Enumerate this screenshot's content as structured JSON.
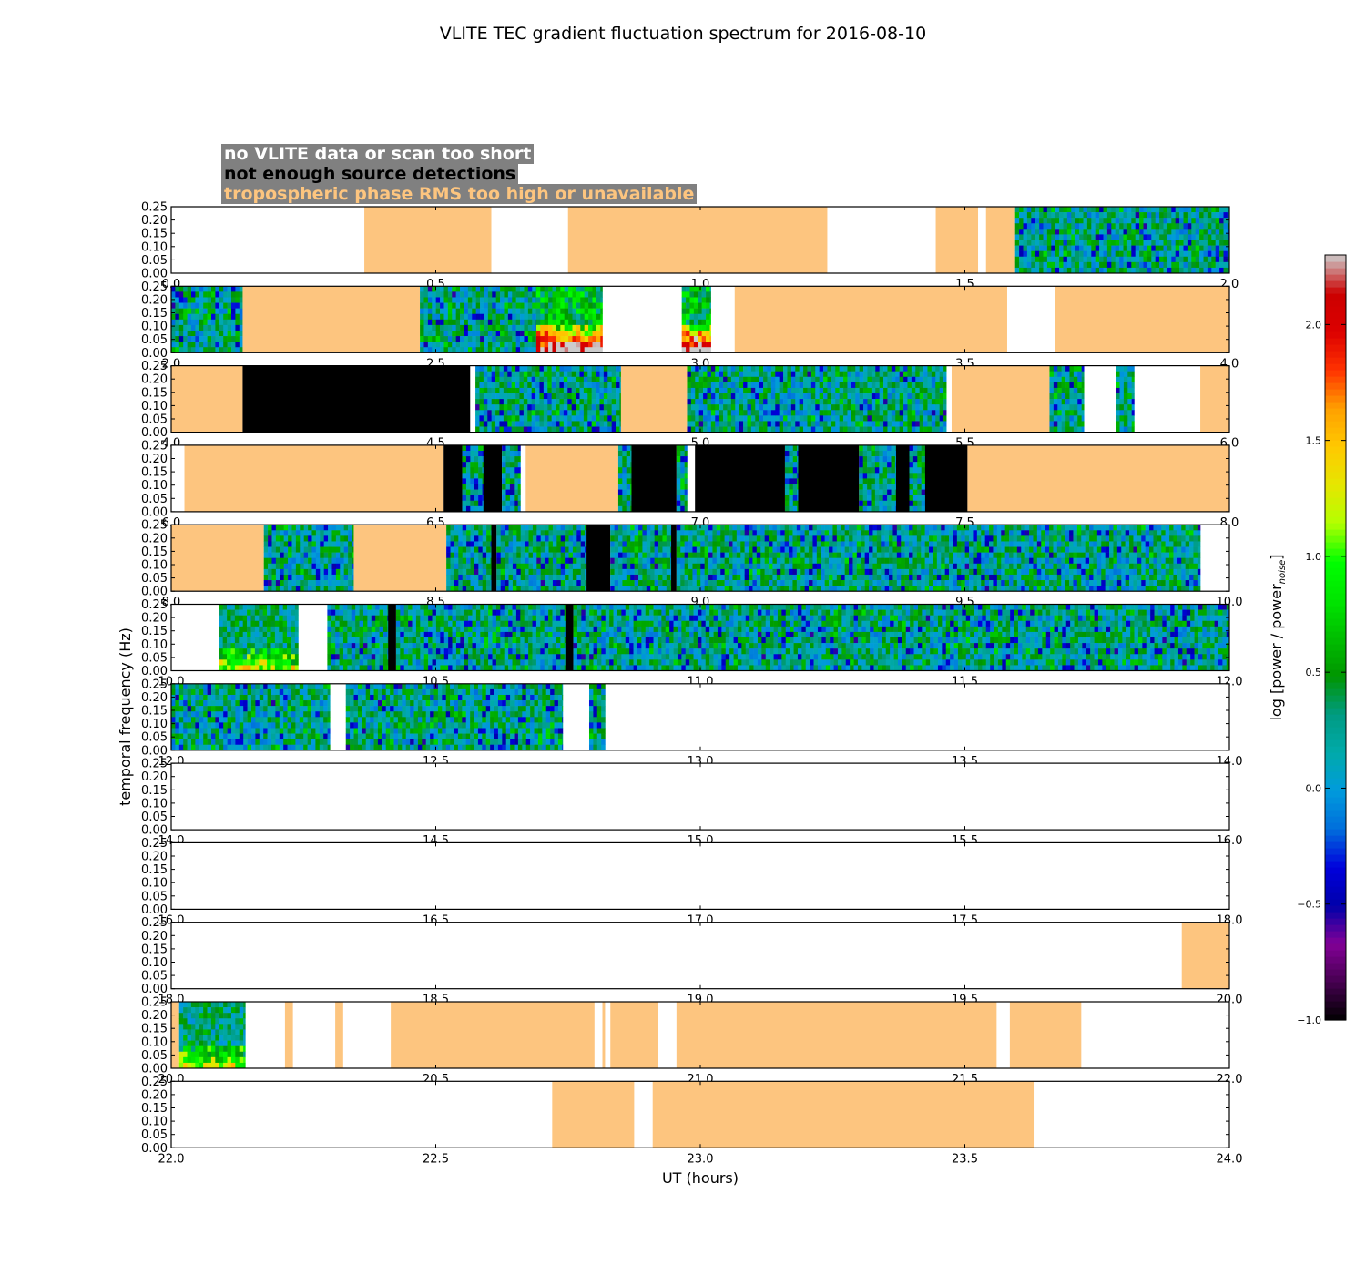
{
  "chart_data": {
    "type": "heatmap",
    "title": "VLITE TEC gradient fluctuation spectrum for 2016-08-10",
    "xlabel": "UT (hours)",
    "ylabel": "temporal frequency (Hz)",
    "ylim": [
      0,
      0.25
    ],
    "yticks": [
      "0.00",
      "0.05",
      "0.10",
      "0.15",
      "0.20",
      "0.25"
    ],
    "colorbar": {
      "label_text": "log [power / power",
      "label_subscript": "noise",
      "label_close": "]",
      "range": [
        -1.0,
        2.3
      ],
      "ticks": [
        "-1.0",
        "-0.5",
        "0.0",
        "0.5",
        "1.0",
        "1.5",
        "2.0"
      ],
      "colormap": "nipy_spectral"
    },
    "legend": [
      {
        "label": "no VLITE data or scan too short",
        "color": "#ffffff"
      },
      {
        "label": "not enough source detections",
        "color": "#000000"
      },
      {
        "label": "tropospheric phase RMS too high or unavailable",
        "color": "#fdc57f"
      }
    ],
    "colors": {
      "no_data": "#ffffff",
      "no_detections": "#000000",
      "tropo_flag": "#fdc57f",
      "legend_bg": "#808080"
    },
    "panels": [
      {
        "xlim": [
          0,
          2
        ],
        "xticks": [
          "0.0",
          "0.5",
          "1.0",
          "1.5",
          "2.0"
        ],
        "segments": [
          [
            0.365,
            0.605,
            "tropo"
          ],
          [
            0.75,
            1.24,
            "tropo"
          ],
          [
            1.445,
            1.525,
            "tropo"
          ],
          [
            1.54,
            1.595,
            "tropo"
          ],
          [
            1.595,
            2.0,
            "spectrum"
          ]
        ]
      },
      {
        "xlim": [
          2,
          4
        ],
        "xticks": [
          "2.0",
          "2.5",
          "3.0",
          "3.5",
          "4.0"
        ],
        "segments": [
          [
            2.0,
            2.135,
            "spectrum"
          ],
          [
            2.135,
            2.47,
            "tropo"
          ],
          [
            2.47,
            2.69,
            "spectrum"
          ],
          [
            2.69,
            2.815,
            "spectrum_active"
          ],
          [
            2.965,
            3.02,
            "spectrum_active"
          ],
          [
            3.065,
            3.58,
            "tropo"
          ],
          [
            3.67,
            4.0,
            "tropo"
          ]
        ]
      },
      {
        "xlim": [
          4,
          6
        ],
        "xticks": [
          "4.0",
          "4.5",
          "5.0",
          "5.5",
          "6.0"
        ],
        "segments": [
          [
            4.0,
            4.135,
            "tropo"
          ],
          [
            4.135,
            4.565,
            "black"
          ],
          [
            4.575,
            4.85,
            "spectrum"
          ],
          [
            4.85,
            4.975,
            "tropo"
          ],
          [
            4.975,
            5.465,
            "spectrum"
          ],
          [
            5.475,
            5.66,
            "tropo"
          ],
          [
            5.66,
            5.725,
            "spectrum"
          ],
          [
            5.785,
            5.82,
            "spectrum"
          ],
          [
            5.945,
            6.0,
            "tropo"
          ]
        ]
      },
      {
        "xlim": [
          6,
          8
        ],
        "xticks": [
          "6.0",
          "6.5",
          "7.0",
          "7.5",
          "8.0"
        ],
        "segments": [
          [
            6.025,
            6.515,
            "tropo"
          ],
          [
            6.515,
            6.55,
            "black"
          ],
          [
            6.55,
            6.59,
            "spectrum"
          ],
          [
            6.59,
            6.625,
            "black"
          ],
          [
            6.625,
            6.66,
            "spectrum"
          ],
          [
            6.67,
            6.845,
            "tropo"
          ],
          [
            6.845,
            6.87,
            "spectrum"
          ],
          [
            6.87,
            6.955,
            "black"
          ],
          [
            6.955,
            6.975,
            "spectrum"
          ],
          [
            6.99,
            7.16,
            "black"
          ],
          [
            7.16,
            7.185,
            "spectrum"
          ],
          [
            7.185,
            7.3,
            "black"
          ],
          [
            7.3,
            7.37,
            "spectrum"
          ],
          [
            7.37,
            7.395,
            "black"
          ],
          [
            7.395,
            7.425,
            "spectrum"
          ],
          [
            7.425,
            7.505,
            "black"
          ],
          [
            7.505,
            8.0,
            "tropo"
          ]
        ]
      },
      {
        "xlim": [
          8,
          10
        ],
        "xticks": [
          "8.0",
          "8.5",
          "9.0",
          "9.5",
          "10.0"
        ],
        "segments": [
          [
            8.0,
            8.175,
            "tropo"
          ],
          [
            8.175,
            8.345,
            "spectrum"
          ],
          [
            8.345,
            8.52,
            "tropo"
          ],
          [
            8.52,
            8.605,
            "spectrum"
          ],
          [
            8.605,
            8.615,
            "black"
          ],
          [
            8.615,
            8.785,
            "spectrum"
          ],
          [
            8.785,
            8.83,
            "black"
          ],
          [
            8.83,
            8.945,
            "spectrum"
          ],
          [
            8.945,
            8.955,
            "black"
          ],
          [
            8.955,
            9.945,
            "spectrum"
          ]
        ]
      },
      {
        "xlim": [
          10,
          12
        ],
        "xticks": [
          "10.0",
          "10.5",
          "11.0",
          "11.5",
          "12.0"
        ],
        "segments": [
          [
            10.09,
            10.24,
            "spectrum_low"
          ],
          [
            10.295,
            10.41,
            "spectrum"
          ],
          [
            10.41,
            10.425,
            "black"
          ],
          [
            10.425,
            10.745,
            "spectrum"
          ],
          [
            10.745,
            10.76,
            "black"
          ],
          [
            10.76,
            12.0,
            "spectrum"
          ]
        ]
      },
      {
        "xlim": [
          12,
          14
        ],
        "xticks": [
          "12.0",
          "12.5",
          "13.0",
          "13.5",
          "14.0"
        ],
        "segments": [
          [
            12.0,
            12.3,
            "spectrum"
          ],
          [
            12.33,
            12.74,
            "spectrum"
          ],
          [
            12.79,
            12.82,
            "spectrum"
          ]
        ]
      },
      {
        "xlim": [
          14,
          16
        ],
        "xticks": [
          "14.0",
          "14.5",
          "15.0",
          "15.5",
          "16.0"
        ],
        "segments": []
      },
      {
        "xlim": [
          16,
          18
        ],
        "xticks": [
          "16.0",
          "16.5",
          "17.0",
          "17.5",
          "18.0"
        ],
        "segments": []
      },
      {
        "xlim": [
          18,
          20
        ],
        "xticks": [
          "18.0",
          "18.5",
          "19.0",
          "19.5",
          "20.0"
        ],
        "segments": [
          [
            19.91,
            20.0,
            "tropo"
          ]
        ]
      },
      {
        "xlim": [
          20,
          22
        ],
        "xticks": [
          "20.0",
          "20.5",
          "21.0",
          "21.5",
          "22.0"
        ],
        "segments": [
          [
            20.0,
            20.015,
            "tropo"
          ],
          [
            20.015,
            20.14,
            "spectrum_low"
          ],
          [
            20.215,
            20.23,
            "tropo"
          ],
          [
            20.31,
            20.325,
            "tropo"
          ],
          [
            20.415,
            20.8,
            "tropo"
          ],
          [
            20.815,
            20.82,
            "tropo"
          ],
          [
            20.83,
            20.92,
            "tropo"
          ],
          [
            20.955,
            21.56,
            "tropo"
          ],
          [
            21.585,
            21.72,
            "tropo"
          ]
        ]
      },
      {
        "xlim": [
          22,
          24
        ],
        "xticks": [
          "22.0",
          "22.5",
          "23.0",
          "23.5",
          "24.0"
        ],
        "segments": [
          [
            22.72,
            22.875,
            "tropo"
          ],
          [
            22.91,
            23.63,
            "tropo"
          ]
        ]
      }
    ]
  }
}
